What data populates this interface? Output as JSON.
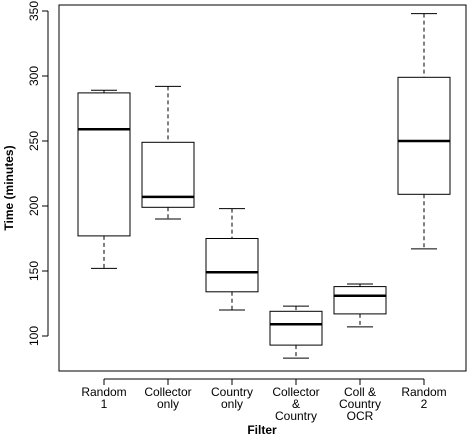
{
  "chart_data": {
    "type": "box",
    "xlabel": "Filter",
    "ylabel": "Time (minutes)",
    "ylim": [
      85,
      355
    ],
    "yticks": [
      100,
      150,
      200,
      250,
      300,
      350
    ],
    "categories": [
      [
        "Random",
        "1"
      ],
      [
        "Collector",
        "only"
      ],
      [
        "Country",
        "only"
      ],
      [
        "Collector",
        "&",
        "Country"
      ],
      [
        "Coll &",
        "Country",
        "OCR"
      ],
      [
        "Random",
        "2"
      ]
    ],
    "boxes": [
      {
        "min": 152,
        "q1": 177,
        "median": 259,
        "q3": 287,
        "max": 289
      },
      {
        "min": 190,
        "q1": 199,
        "median": 207,
        "q3": 249,
        "max": 292
      },
      {
        "min": 120,
        "q1": 134,
        "median": 149,
        "q3": 175,
        "max": 198
      },
      {
        "min": 83,
        "q1": 93,
        "median": 109,
        "q3": 119,
        "max": 123
      },
      {
        "min": 107,
        "q1": 117,
        "median": 131,
        "q3": 138,
        "max": 140
      },
      {
        "min": 167,
        "q1": 209,
        "median": 250,
        "q3": 299,
        "max": 348
      }
    ],
    "grid": false,
    "legend": "none"
  }
}
